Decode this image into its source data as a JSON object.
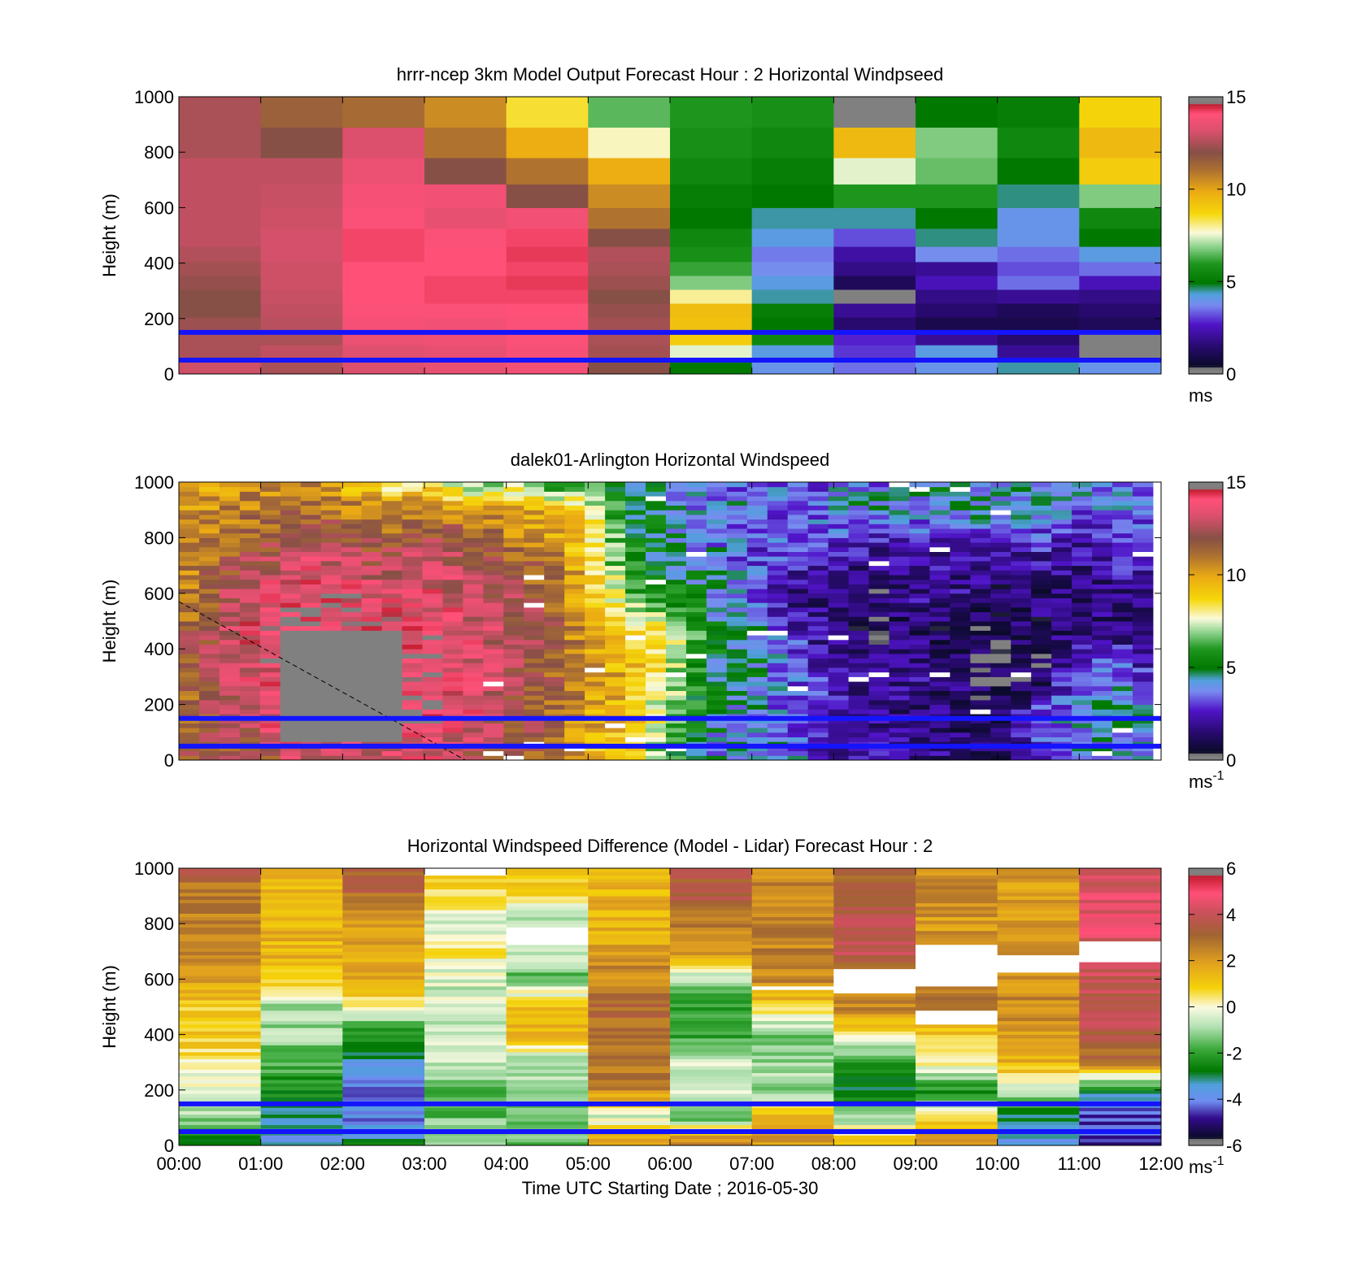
{
  "figure": {
    "xlabel": "Time UTC  Starting Date ; 2016-05-30",
    "time_ticks": [
      "00:00",
      "01:00",
      "02:00",
      "03:00",
      "04:00",
      "05:00",
      "06:00",
      "07:00",
      "08:00",
      "09:00",
      "10:00",
      "11:00",
      "12:00"
    ]
  },
  "chart_data": [
    {
      "type": "heatmap",
      "title": "hrrr-ncep 3km Model Output   Forecast Hour : 2 Horizontal Windpseed",
      "ylabel": "Height (m)",
      "xlabel": "",
      "y_ticks": [
        "0",
        "200",
        "400",
        "600",
        "800",
        "1000"
      ],
      "ylim": [
        0,
        1000
      ],
      "x_range_hours": [
        0,
        12
      ],
      "colorbar": {
        "ticks": [
          "0",
          "5",
          "10",
          "15"
        ],
        "range": [
          0,
          15
        ],
        "unit": "ms",
        "unit_exp": "",
        "palette": "windspeed"
      },
      "reference_lines_m": [
        50,
        150
      ],
      "reference_line_color": "#1414ff",
      "column_edges_hours": [
        0,
        1,
        2,
        3,
        4,
        5,
        6,
        7,
        8,
        9,
        10,
        11,
        12
      ],
      "height_levels_m": [
        30,
        80,
        130,
        180,
        230,
        280,
        330,
        380,
        430,
        490,
        560,
        640,
        730,
        830,
        950
      ],
      "values_ms": [
        [
          13.0,
          12.5,
          13.2,
          13.5,
          13.8,
          12.0,
          5.0,
          4.0,
          3.5,
          4.0,
          4.5,
          4.0
        ],
        [
          12.5,
          12.8,
          13.3,
          13.5,
          13.9,
          12.4,
          7.5,
          4.2,
          3.0,
          4.2,
          2.0,
          0.3
        ],
        [
          12.5,
          12.5,
          13.6,
          13.7,
          14.0,
          12.5,
          9.0,
          5.5,
          2.8,
          2.0,
          1.5,
          0.3
        ],
        [
          12.3,
          12.7,
          13.9,
          13.8,
          14.0,
          12.4,
          9.3,
          5.0,
          1.5,
          1.0,
          1.0,
          1.2
        ],
        [
          12.0,
          12.8,
          14.0,
          14.0,
          14.1,
          12.2,
          9.4,
          5.2,
          2.0,
          1.5,
          1.2,
          1.5
        ],
        [
          12.0,
          12.9,
          14.1,
          14.2,
          14.2,
          12.0,
          8.0,
          4.5,
          0.3,
          1.8,
          2.0,
          1.8
        ],
        [
          12.2,
          13.0,
          14.1,
          14.2,
          14.3,
          12.3,
          6.8,
          4.2,
          1.2,
          2.5,
          3.5,
          2.5
        ],
        [
          12.4,
          13.0,
          14.1,
          14.1,
          14.2,
          12.5,
          6.2,
          3.8,
          1.8,
          2.0,
          3.2,
          3.5
        ],
        [
          12.6,
          13.1,
          14.2,
          14.1,
          14.3,
          12.6,
          5.8,
          3.6,
          2.2,
          3.8,
          3.5,
          4.2
        ],
        [
          12.8,
          13.1,
          14.2,
          14.0,
          14.2,
          12.0,
          5.5,
          4.2,
          3.2,
          4.6,
          4.0,
          5.0
        ],
        [
          12.8,
          13.0,
          14.0,
          13.5,
          13.8,
          11.0,
          5.0,
          4.5,
          4.5,
          5.0,
          4.0,
          5.5
        ],
        [
          12.8,
          12.9,
          13.9,
          13.8,
          12.0,
          10.5,
          5.2,
          5.0,
          6.0,
          6.0,
          4.6,
          6.8
        ],
        [
          12.8,
          12.8,
          13.6,
          12.0,
          11.0,
          9.8,
          5.5,
          5.2,
          7.5,
          6.6,
          5.0,
          9.0
        ],
        [
          12.5,
          12.0,
          13.2,
          11.0,
          9.8,
          7.8,
          5.8,
          5.5,
          9.5,
          6.8,
          5.5,
          9.5
        ],
        [
          12.5,
          11.5,
          11.2,
          10.5,
          8.5,
          6.5,
          6.0,
          5.8,
          0.0,
          5.0,
          5.2,
          8.8
        ]
      ]
    },
    {
      "type": "heatmap",
      "title": "dalek01-Arlington  Horizontal Windspeed",
      "ylabel": "Height (m)",
      "xlabel": "",
      "y_ticks": [
        "0",
        "200",
        "400",
        "600",
        "800",
        "1000"
      ],
      "ylim": [
        0,
        1000
      ],
      "x_range_hours": [
        0,
        12
      ],
      "colorbar": {
        "ticks": [
          "0",
          "5",
          "10",
          "15"
        ],
        "range": [
          0,
          15
        ],
        "unit": "ms",
        "unit_exp": "-1",
        "palette": "windspeed"
      },
      "reference_lines_m": [
        50,
        150
      ],
      "reference_line_color": "#1414ff",
      "dashed_line": {
        "x_hours": [
          0.0,
          3.5
        ],
        "y_m": [
          570,
          0
        ]
      },
      "column_anchor_hours": [
        0.0,
        0.5,
        1.0,
        1.5,
        2.0,
        2.5,
        3.0,
        3.5,
        4.0,
        4.5,
        5.0,
        5.5,
        6.0,
        6.5,
        7.0,
        7.5,
        8.0,
        8.5,
        9.0,
        9.5,
        10.0,
        10.5,
        11.0,
        11.5,
        11.9
      ],
      "height_anchor_m": [
        20,
        150,
        300,
        450,
        600,
        750,
        900,
        1000
      ],
      "values_ms_anchors": [
        [
          11.5,
          12.0,
          11.5,
          13.5,
          13.0,
          13.0,
          13.5,
          12.5,
          12.0,
          11.5,
          9.5,
          9.0,
          6.0,
          4.0,
          4.5,
          4.0,
          2.0,
          2.0,
          2.0,
          1.5,
          1.0,
          2.5,
          4.5,
          4.0,
          4.0
        ],
        [
          11.5,
          12.0,
          13.5,
          14.5,
          14.0,
          13.8,
          14.2,
          13.5,
          12.5,
          11.5,
          10.0,
          9.5,
          6.5,
          4.5,
          4.0,
          3.5,
          2.0,
          2.0,
          1.5,
          1.5,
          1.0,
          3.5,
          4.0,
          4.5,
          4.5
        ],
        [
          11.0,
          12.5,
          13.5,
          14.5,
          14.0,
          14.0,
          14.2,
          13.5,
          12.5,
          11.8,
          10.5,
          9.5,
          7.5,
          5.0,
          4.5,
          3.5,
          2.5,
          2.0,
          2.0,
          1.5,
          0.8,
          0.8,
          3.5,
          4.0,
          2.5
        ],
        [
          11.5,
          12.5,
          14.0,
          14.5,
          14.2,
          14.0,
          14.0,
          13.5,
          12.5,
          12.0,
          10.0,
          9.0,
          8.5,
          5.0,
          4.5,
          3.0,
          1.5,
          1.0,
          1.5,
          1.0,
          0.8,
          1.5,
          1.8,
          1.8,
          1.0
        ],
        [
          10.5,
          12.0,
          13.5,
          14.0,
          13.8,
          13.5,
          13.5,
          13.0,
          12.5,
          11.5,
          9.5,
          6.5,
          5.5,
          4.5,
          3.5,
          1.5,
          1.5,
          1.0,
          2.0,
          2.0,
          1.2,
          1.5,
          1.2,
          1.5,
          1.5
        ],
        [
          10.5,
          11.5,
          12.0,
          13.0,
          12.5,
          12.0,
          13.0,
          12.5,
          11.5,
          11.0,
          9.0,
          5.5,
          4.5,
          4.0,
          3.0,
          3.5,
          2.5,
          2.0,
          2.5,
          2.0,
          2.0,
          2.5,
          2.0,
          3.0,
          2.5
        ],
        [
          10.0,
          10.5,
          11.0,
          11.5,
          11.0,
          10.5,
          11.0,
          10.5,
          10.0,
          9.5,
          8.5,
          5.0,
          4.5,
          3.5,
          4.0,
          3.0,
          4.0,
          4.5,
          4.0,
          4.5,
          4.5,
          4.0,
          3.5,
          3.5,
          3.5
        ],
        [
          9.5,
          10.0,
          10.5,
          10.5,
          9.5,
          8.0,
          8.5,
          6.0,
          7.0,
          5.5,
          6.5,
          5.0,
          4.5,
          3.0,
          4.0,
          3.0,
          3.5,
          3.5,
          4.0,
          4.5,
          4.0,
          4.5,
          4.5,
          3.5,
          4.0
        ]
      ],
      "missing_region": {
        "x_hours": [
          1.3,
          2.8
        ],
        "y_m": [
          60,
          470
        ],
        "fill": "#808080"
      }
    },
    {
      "type": "heatmap",
      "title": "Horizontal Windspeed Difference (Model - Lidar) Forecast Hour : 2",
      "ylabel": "Height (m)",
      "xlabel": "Time UTC  Starting Date ; 2016-05-30",
      "y_ticks": [
        "0",
        "200",
        "400",
        "600",
        "800",
        "1000"
      ],
      "ylim": [
        0,
        1000
      ],
      "x_range_hours": [
        0,
        12
      ],
      "colorbar": {
        "ticks": [
          "-6",
          "-4",
          "-2",
          "0",
          "2",
          "4",
          "6"
        ],
        "range": [
          -6,
          6
        ],
        "unit": "ms",
        "unit_exp": "-1",
        "palette": "difference"
      },
      "reference_lines_m": [
        50,
        150
      ],
      "reference_line_color": "#1414ff",
      "column_edges_hours": [
        0,
        1,
        2,
        3,
        4,
        5,
        6,
        7,
        8,
        9,
        10,
        11,
        12
      ],
      "height_anchor_m": [
        20,
        100,
        200,
        300,
        400,
        500,
        600,
        700,
        800,
        900,
        1000
      ],
      "values_diff_anchors": [
        [
          -2.5,
          -3.5,
          -3.0,
          -1.0,
          -1.5,
          2.0,
          2.5,
          2.0,
          1.0,
          2.0,
          -3.5,
          -4.5
        ],
        [
          -1.0,
          -3.0,
          -4.0,
          -1.5,
          -1.5,
          -0.5,
          -1.5,
          1.5,
          -1.0,
          1.0,
          -3.0,
          -4.5
        ],
        [
          -0.5,
          -2.5,
          -4.0,
          -1.5,
          -1.0,
          2.5,
          -0.5,
          -1.0,
          -3.0,
          -2.5,
          -0.5,
          -3.0
        ],
        [
          0.5,
          -1.5,
          -3.5,
          -0.5,
          -1.0,
          3.0,
          -0.5,
          -1.0,
          -2.0,
          0.5,
          1.5,
          3.0
        ],
        [
          1.0,
          -1.0,
          -2.5,
          -0.5,
          1.5,
          3.0,
          -2.0,
          -1.5,
          0.5,
          1.0,
          2.0,
          3.5
        ],
        [
          1.0,
          -1.0,
          0.5,
          -0.5,
          1.5,
          3.0,
          -2.0,
          1.0,
          2.5,
          3.0,
          2.5,
          4.0
        ],
        [
          2.0,
          1.0,
          1.5,
          -0.5,
          -1.5,
          2.5,
          -1.0,
          2.5,
          2.5,
          2.5,
          2.0,
          4.0
        ],
        [
          2.5,
          1.5,
          2.0,
          0.5,
          -0.5,
          2.0,
          2.5,
          2.5,
          4.0,
          2.5,
          2.5,
          4.0
        ],
        [
          2.5,
          1.5,
          2.0,
          -0.5,
          -1.0,
          1.5,
          2.5,
          2.5,
          4.0,
          2.0,
          2.0,
          4.5
        ],
        [
          2.5,
          1.5,
          3.0,
          0.5,
          0.5,
          1.5,
          3.5,
          2.5,
          3.5,
          2.5,
          2.0,
          4.5
        ],
        [
          3.5,
          1.5,
          3.5,
          1.5,
          1.5,
          1.5,
          3.5,
          2.5,
          3.0,
          2.0,
          2.0,
          4.0
        ]
      ],
      "blank_bands": [
        {
          "x_hours": [
            3.0,
            4.0
          ],
          "y_m": [
            970,
            1000
          ]
        },
        {
          "x_hours": [
            4.0,
            5.0
          ],
          "y_m": [
            730,
            790
          ]
        },
        {
          "x_hours": [
            7.0,
            8.0
          ],
          "y_m": [
            560,
            570
          ]
        },
        {
          "x_hours": [
            8.0,
            9.0
          ],
          "y_m": [
            550,
            640
          ]
        },
        {
          "x_hours": [
            9.0,
            10.0
          ],
          "y_m": [
            570,
            720
          ]
        },
        {
          "x_hours": [
            9.0,
            10.0
          ],
          "y_m": [
            440,
            490
          ]
        },
        {
          "x_hours": [
            10.0,
            11.0
          ],
          "y_m": [
            630,
            690
          ]
        },
        {
          "x_hours": [
            11.0,
            12.0
          ],
          "y_m": [
            660,
            740
          ]
        }
      ]
    }
  ]
}
